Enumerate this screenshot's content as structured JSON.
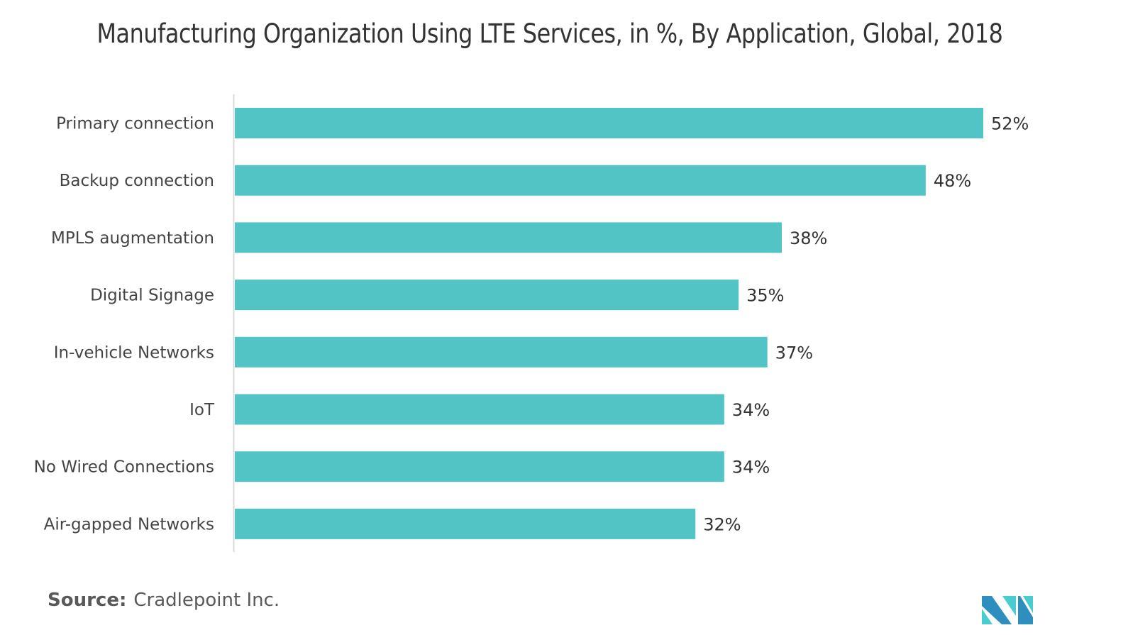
{
  "title": "Manufacturing Organization Using LTE Services, in %, By Application, Global, 2018",
  "source_label": "Source:",
  "source_value": "Cradlepoint Inc.",
  "logo": "mordor-intelligence-logo",
  "colors": {
    "bar": "#52c4c6",
    "axis": "#d9d9d9",
    "logo_dark": "#2e8fbf",
    "logo_light": "#4acbd0"
  },
  "chart_data": {
    "type": "bar",
    "orientation": "horizontal",
    "title": "Manufacturing Organization Using LTE Services, in %, By Application, Global, 2018",
    "xlabel": "",
    "ylabel": "",
    "unit": "%",
    "categories": [
      "Primary connection",
      "Backup connection",
      "MPLS augmentation",
      "Digital Signage",
      "In-vehicle Networks",
      "IoT",
      "No Wired Connections",
      "Air-gapped Networks"
    ],
    "values": [
      52,
      48,
      38,
      35,
      37,
      34,
      34,
      32
    ],
    "data_labels": [
      "52%",
      "48%",
      "38%",
      "35%",
      "37%",
      "34%",
      "34%",
      "32%"
    ],
    "xlim": [
      0,
      52
    ],
    "grid": false,
    "legend": "none"
  }
}
